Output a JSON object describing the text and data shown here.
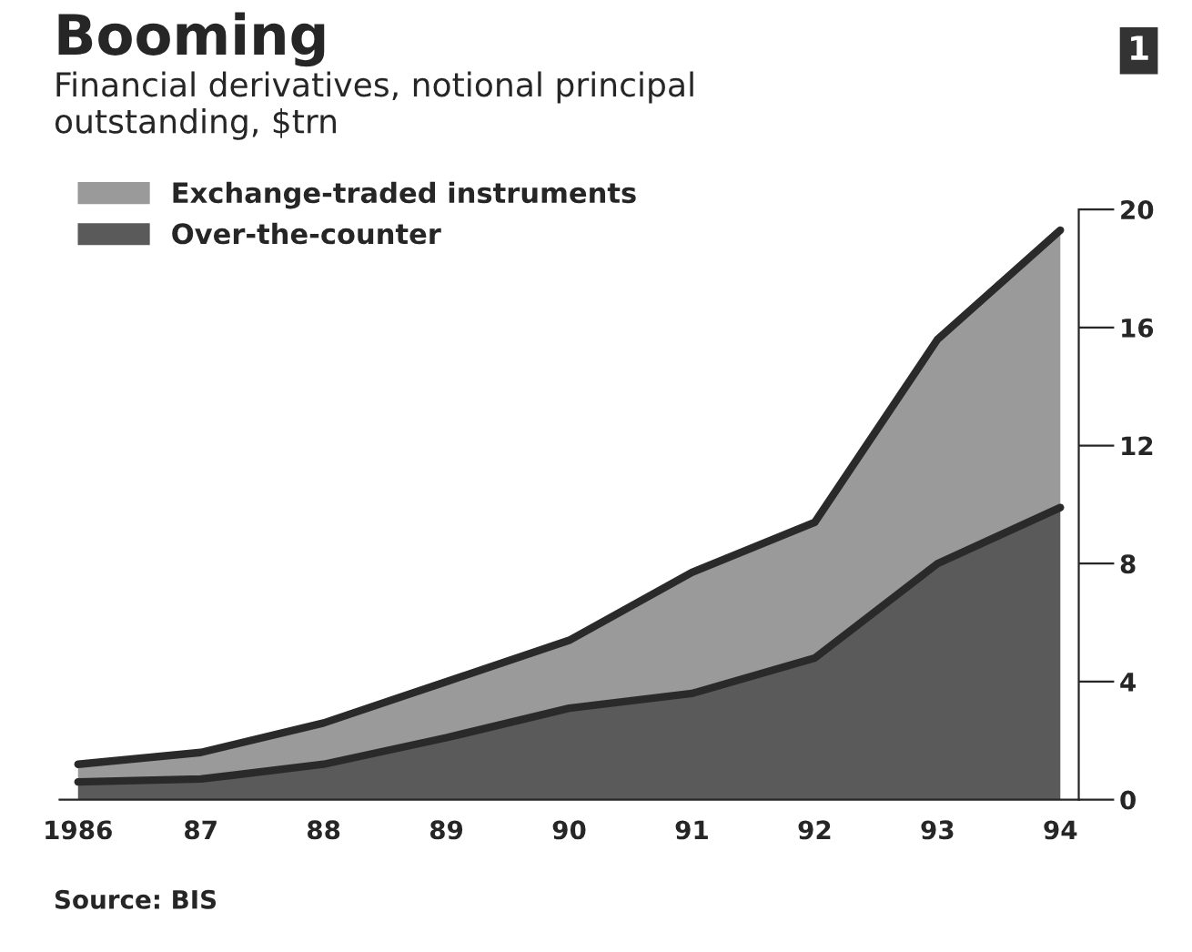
{
  "chart_data": {
    "type": "area",
    "stacked": true,
    "title": "Booming",
    "subtitle": "Financial derivatives, notional principal\noutstanding, $trn",
    "categories": [
      "1986",
      "87",
      "88",
      "89",
      "90",
      "91",
      "92",
      "93",
      "94"
    ],
    "series": [
      {
        "name": "Over-the-counter",
        "color": "#5a5a5a",
        "values": [
          0.6,
          0.7,
          1.2,
          2.1,
          3.1,
          3.6,
          4.8,
          8.0,
          9.9
        ]
      },
      {
        "name": "Exchange-traded instruments",
        "color": "#9a9a9a",
        "values": [
          0.6,
          0.9,
          1.4,
          1.9,
          2.3,
          4.1,
          4.6,
          7.6,
          9.4
        ]
      }
    ],
    "ylim": [
      0,
      20
    ],
    "yticks": [
      0,
      4,
      8,
      12,
      16,
      20
    ],
    "grid": false,
    "legend": "top left",
    "annotations": [
      "Source: BIS",
      "1"
    ]
  }
}
